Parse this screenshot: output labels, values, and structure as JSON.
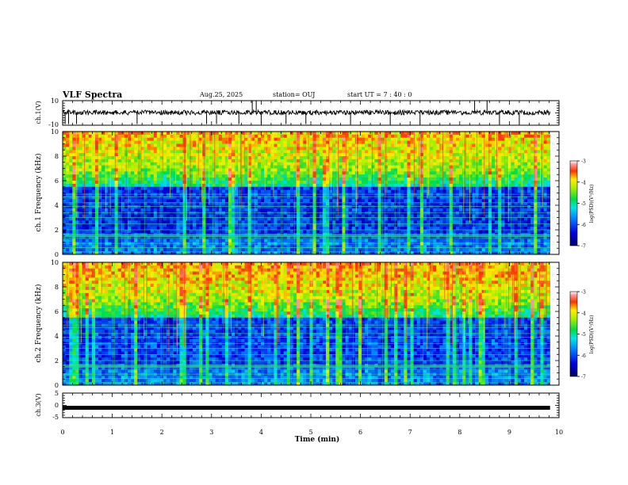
{
  "header": {
    "title": "VLF Spectra",
    "date": "Aug.25, 2025",
    "station": "station= OUJ",
    "start_ut": "start UT =   7 : 40 : 0"
  },
  "chart_data": [
    {
      "type": "line",
      "panel": "ch1-waveform",
      "ylabel": "ch.1(V)",
      "ylim": [
        -10,
        10
      ],
      "yticks": [
        "10",
        "-10"
      ],
      "xlim": [
        0,
        10
      ],
      "trace": "noisy waveform centered near 0 V with sparse negative spikes to about -10 V and a few positive spikes near 3.8-3.9 min and 8.3-8.6 min",
      "data_end_min": 9.82
    },
    {
      "type": "heatmap",
      "panel": "ch1-spectrogram",
      "ylabel": "ch.1  Frequency (kHz)",
      "ylim": [
        0,
        10
      ],
      "yticks": [
        "0",
        "2",
        "4",
        "6",
        "8",
        "10"
      ],
      "xlim": [
        0,
        10
      ],
      "colorbar": {
        "label": "log(PSD)(V²/Hz)",
        "range": [
          -7,
          -3
        ],
        "ticks": [
          "-3",
          "-4",
          "-5",
          "-6",
          "-7"
        ]
      },
      "data_end_min": 9.82
    },
    {
      "type": "heatmap",
      "panel": "ch2-spectrogram",
      "ylabel": "ch.2  Frequency (kHz)",
      "ylim": [
        0,
        10
      ],
      "yticks": [
        "0",
        "2",
        "4",
        "6",
        "8",
        "10"
      ],
      "xlim": [
        0,
        10
      ],
      "colorbar": {
        "label": "log(PSD)(V²/Hz)",
        "range": [
          -7,
          -3
        ],
        "ticks": [
          "-3",
          "-4",
          "-5",
          "-6",
          "-7"
        ]
      },
      "data_end_min": 9.82
    },
    {
      "type": "line",
      "panel": "ch3-waveform",
      "ylabel": "ch.3(V)",
      "ylim": [
        -5,
        5
      ],
      "yticks": [
        "5",
        "0",
        "-5"
      ],
      "xlim": [
        0,
        10
      ],
      "xlabel": "Time (min)",
      "xticks": [
        "0",
        "1",
        "2",
        "3",
        "4",
        "5",
        "6",
        "7",
        "8",
        "9",
        "10"
      ],
      "trace": "thick flat line at about -1 V",
      "level_v": -1,
      "data_end_min": 9.82
    }
  ]
}
